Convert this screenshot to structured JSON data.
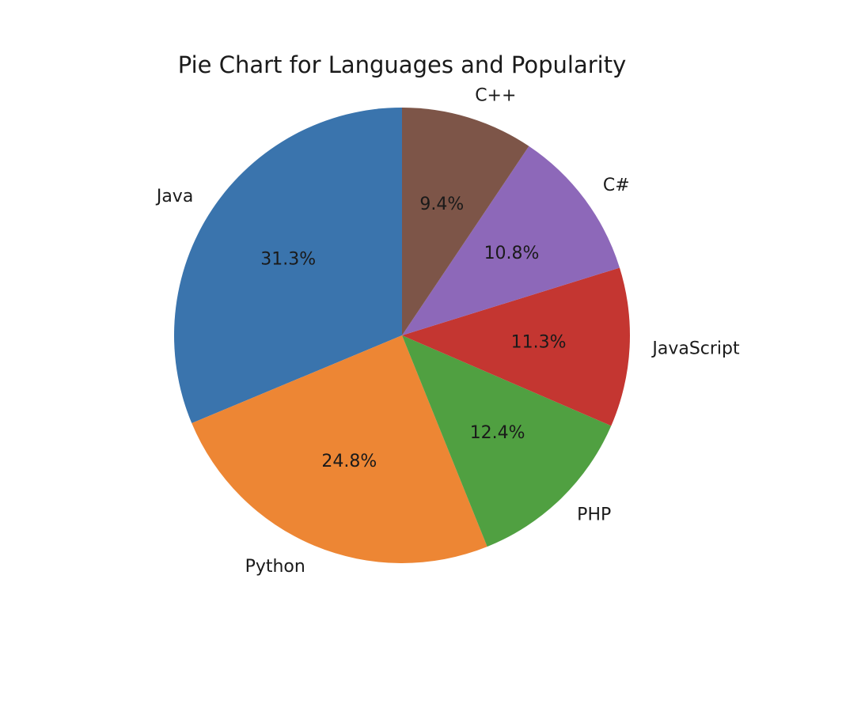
{
  "chart_data": {
    "type": "pie",
    "title": "Pie Chart for Languages and Popularity",
    "start_angle_deg": 90,
    "direction": "counterclockwise",
    "slices": [
      {
        "label": "Java",
        "value": 31.3,
        "pct_label": "31.3%",
        "color": "#3a74ad"
      },
      {
        "label": "Python",
        "value": 24.8,
        "pct_label": "24.8%",
        "color": "#ed8634"
      },
      {
        "label": "PHP",
        "value": 12.4,
        "pct_label": "12.4%",
        "color": "#50a041"
      },
      {
        "label": "JavaScript",
        "value": 11.3,
        "pct_label": "11.3%",
        "color": "#c43631"
      },
      {
        "label": "C#",
        "value": 10.8,
        "pct_label": "10.8%",
        "color": "#8d68b9"
      },
      {
        "label": "C++",
        "value": 9.4,
        "pct_label": "9.4%",
        "color": "#7d5548"
      }
    ]
  }
}
